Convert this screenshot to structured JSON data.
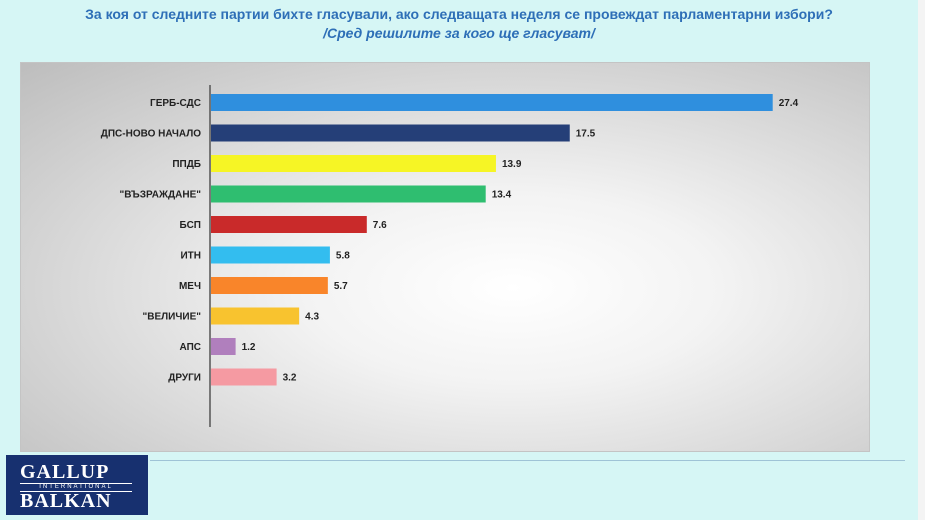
{
  "header": {
    "title": "За коя от следните партии бихте  гласували,  ако следващата неделя се провеждат парламентарни избори?",
    "subtitle": "/Сред решилите за кого ще гласуват/"
  },
  "chart_data": {
    "type": "bar",
    "orientation": "horizontal",
    "categories": [
      "ГЕРБ-СДС",
      "ДПС-НОВО НАЧАЛО",
      "ППДБ",
      "\"ВЪЗРАЖДАНЕ\"",
      "БСП",
      "ИТН",
      "МЕЧ",
      "\"ВЕЛИЧИЕ\"",
      "АПС",
      "ДРУГИ"
    ],
    "values": [
      27.4,
      17.5,
      13.9,
      13.4,
      7.6,
      5.8,
      5.7,
      4.3,
      1.2,
      3.2
    ],
    "value_labels": [
      "27.4",
      "17.5",
      "13.9",
      "13.4",
      "7.6",
      "5.8",
      "5.7",
      "4.3",
      "1.2",
      "3.2"
    ],
    "colors": [
      "#2f8fde",
      "#253f78",
      "#f6f525",
      "#2fbe70",
      "#c92a2a",
      "#33bdef",
      "#f9852a",
      "#f8c32f",
      "#b07fbd",
      "#f59aa2"
    ],
    "xlim": [
      0,
      28
    ],
    "grid": false,
    "legend": "none"
  },
  "logo": {
    "line1": "GALLUP",
    "line2": "INTERNATIONAL",
    "line3": "BALKAN"
  }
}
